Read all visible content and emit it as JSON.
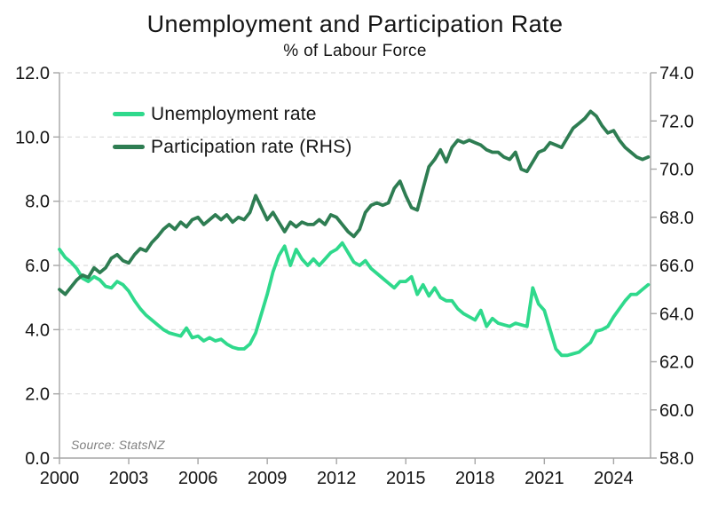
{
  "page": {
    "title": "Unemployment and Participation Rate",
    "subtitle": "% of Labour Force",
    "source": "Source: StatsNZ"
  },
  "legend": [
    {
      "label": "Unemployment rate",
      "color": "#2FD98C"
    },
    {
      "label": "Participation rate (RHS)",
      "color": "#2E7D52"
    }
  ],
  "colors": {
    "grid": "#d9d9d9",
    "axis": "#a6a6a6",
    "text": "#151515",
    "source_text": "#808080",
    "background": "#ffffff"
  },
  "chart_data": {
    "type": "line",
    "title": "Unemployment and Participation Rate",
    "subtitle": "% of Labour Force",
    "source": "Source: StatsNZ",
    "grid": {
      "horizontal": true,
      "style": "dashed"
    },
    "legend_position": "top-left-inside",
    "x_axis": {
      "min": 2000,
      "max": 2025.6,
      "ticks": [
        2000,
        2003,
        2006,
        2009,
        2012,
        2015,
        2018,
        2021,
        2024
      ]
    },
    "left_axis": {
      "title": "Unemployment rate (%)",
      "min": 0,
      "max": 12,
      "ticks": [
        0,
        2,
        4,
        6,
        8,
        10,
        12
      ],
      "decimals": 1
    },
    "right_axis": {
      "title": "Participation rate (%)",
      "min": 58,
      "max": 74,
      "ticks": [
        58,
        60,
        62,
        64,
        66,
        68,
        70,
        72,
        74
      ],
      "decimals": 1
    },
    "x_start": 2000.0,
    "x_step": 0.25,
    "frequency": "quarterly",
    "series": [
      {
        "name": "Unemployment rate",
        "axis": "left",
        "color": "#2FD98C",
        "values": [
          6.5,
          6.25,
          6.1,
          5.9,
          5.6,
          5.5,
          5.65,
          5.55,
          5.35,
          5.3,
          5.5,
          5.4,
          5.2,
          4.9,
          4.65,
          4.45,
          4.3,
          4.15,
          4.0,
          3.9,
          3.85,
          3.8,
          4.05,
          3.75,
          3.8,
          3.65,
          3.75,
          3.65,
          3.7,
          3.55,
          3.45,
          3.4,
          3.4,
          3.55,
          3.9,
          4.5,
          5.1,
          5.8,
          6.3,
          6.6,
          6.0,
          6.5,
          6.2,
          6.0,
          6.2,
          6.0,
          6.2,
          6.4,
          6.5,
          6.7,
          6.4,
          6.1,
          6.0,
          6.15,
          5.9,
          5.75,
          5.6,
          5.45,
          5.3,
          5.5,
          5.5,
          5.65,
          5.1,
          5.4,
          5.05,
          5.3,
          5.0,
          4.9,
          4.9,
          4.65,
          4.5,
          4.4,
          4.3,
          4.6,
          4.1,
          4.35,
          4.2,
          4.15,
          4.1,
          4.2,
          4.15,
          4.1,
          5.3,
          4.8,
          4.6,
          4.0,
          3.4,
          3.2,
          3.2,
          3.25,
          3.3,
          3.45,
          3.6,
          3.95,
          4.0,
          4.1,
          4.4,
          4.65,
          4.9,
          5.1,
          5.1,
          5.25,
          5.4
        ]
      },
      {
        "name": "Participation rate (RHS)",
        "axis": "right",
        "color": "#2E7D52",
        "values": [
          65.0,
          64.8,
          65.1,
          65.4,
          65.6,
          65.5,
          65.9,
          65.7,
          65.9,
          66.3,
          66.45,
          66.2,
          66.1,
          66.45,
          66.7,
          66.6,
          66.95,
          67.2,
          67.5,
          67.7,
          67.5,
          67.8,
          67.6,
          67.9,
          68.0,
          67.7,
          67.9,
          68.1,
          67.9,
          68.1,
          67.8,
          68.0,
          67.9,
          68.2,
          68.9,
          68.4,
          67.9,
          68.2,
          67.8,
          67.4,
          67.8,
          67.6,
          67.8,
          67.7,
          67.7,
          67.9,
          67.7,
          68.1,
          68.0,
          67.7,
          67.4,
          67.2,
          67.5,
          68.2,
          68.5,
          68.6,
          68.5,
          68.6,
          69.2,
          69.5,
          68.9,
          68.4,
          68.3,
          69.2,
          70.1,
          70.4,
          70.8,
          70.3,
          70.9,
          71.2,
          71.1,
          71.2,
          71.1,
          71.0,
          70.8,
          70.7,
          70.7,
          70.5,
          70.4,
          70.7,
          70.0,
          69.9,
          70.3,
          70.7,
          70.8,
          71.1,
          71.0,
          70.9,
          71.3,
          71.7,
          71.9,
          72.1,
          72.4,
          72.2,
          71.8,
          71.5,
          71.6,
          71.2,
          70.9,
          70.7,
          70.5,
          70.4,
          70.5
        ]
      }
    ]
  }
}
